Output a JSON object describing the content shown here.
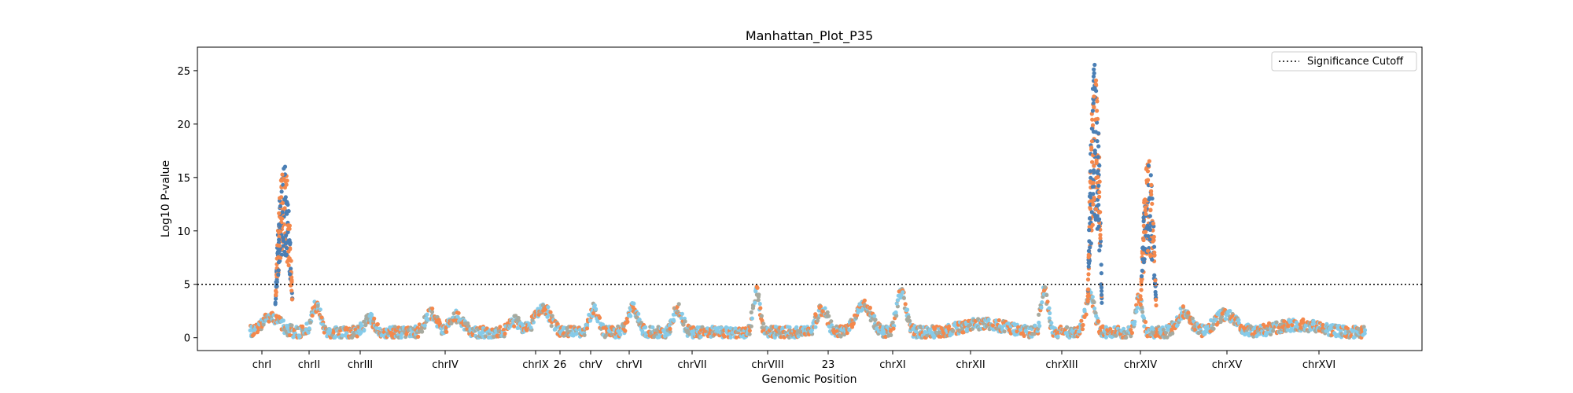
{
  "chart_data": {
    "type": "scatter",
    "title": "Manhattan_Plot_P35",
    "xlabel": "Genomic Position",
    "ylabel": "Log10 P-value",
    "ylim": [
      -1.2,
      27.2
    ],
    "y_ticks": [
      0,
      5,
      10,
      15,
      20,
      25
    ],
    "grid": false,
    "legend": {
      "placement": "top-right",
      "entries": [
        "Significance Cutoff"
      ]
    },
    "significance_cutoff": 5,
    "colors": {
      "blue": "#4a7fb5",
      "orange": "#f4884c",
      "lightblue": "#86cbe9",
      "gray": "#a7aa9f"
    },
    "chromosome_labels": [
      "chrI",
      "chrII",
      "chrIII",
      "chrIV",
      "chrIX",
      "26",
      "chrV",
      "chrVI",
      "chrVII",
      "chrVIII",
      "23",
      "chrXI",
      "chrXII",
      "chrXIII",
      "chrXIV",
      "chrXV",
      "chrXVI"
    ],
    "peaks": [
      {
        "chromosome": "chrII",
        "max_log10_p": 16.7
      },
      {
        "chromosome": "chrXIII",
        "max_log10_p": 25.9
      },
      {
        "chromosome": "chrXIV",
        "max_log10_p": 16.8
      },
      {
        "chromosome": "chrVIII",
        "max_log10_p": 5.2
      },
      {
        "chromosome": "chrXIII",
        "max_log10_p": 5.6
      }
    ]
  }
}
